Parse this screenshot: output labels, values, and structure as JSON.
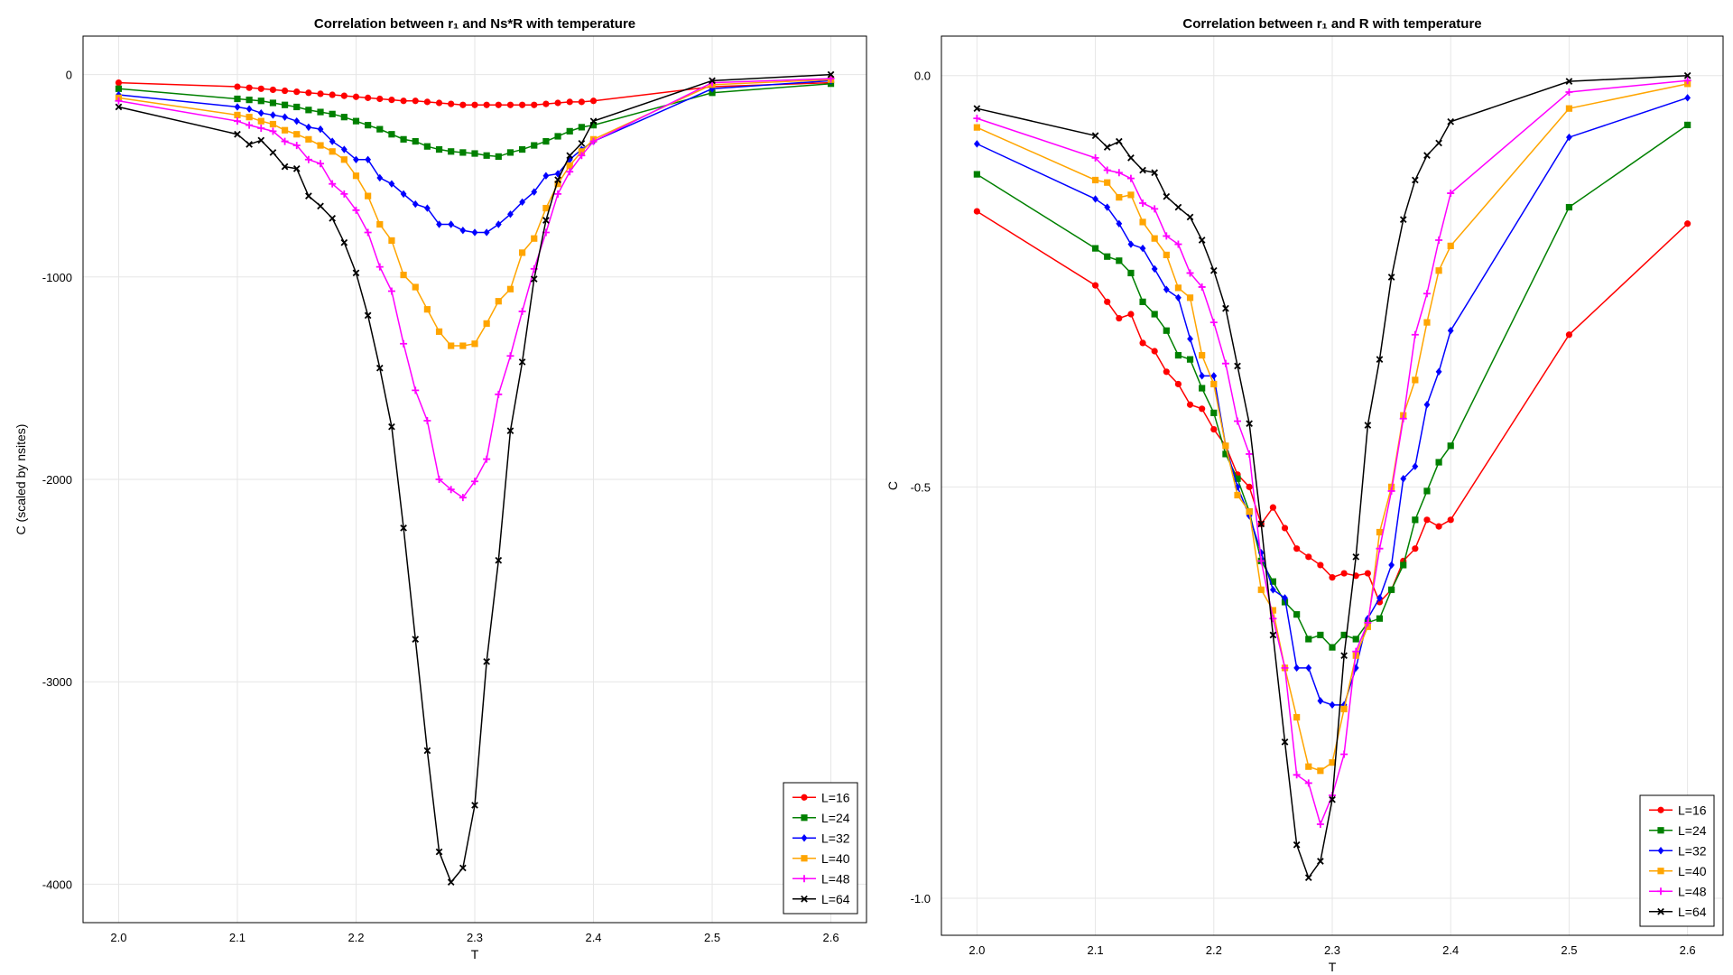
{
  "chart_data": [
    {
      "type": "line",
      "title": "Correlation between r₁ and Ns*R with temperature",
      "xlabel": "T",
      "ylabel": "C (scaled by nsites)",
      "xlim": [
        1.97,
        2.63
      ],
      "ylim": [
        -4190,
        190
      ],
      "xticks": [
        2.0,
        2.1,
        2.2,
        2.3,
        2.4,
        2.5,
        2.6
      ],
      "xtick_labels": [
        "2.0",
        "2.1",
        "2.2",
        "2.3",
        "2.4",
        "2.5",
        "2.6"
      ],
      "yticks": [
        0,
        -1000,
        -2000,
        -3000,
        -4000
      ],
      "ytick_labels": [
        "0",
        "-1000",
        "-2000",
        "-3000",
        "-4000"
      ],
      "grid": true,
      "legend": "bottom-right",
      "series": [
        {
          "name": "L=16",
          "color": "#ff0000",
          "marker": "circle",
          "x": [
            2.0,
            2.1,
            2.11,
            2.12,
            2.13,
            2.14,
            2.15,
            2.16,
            2.17,
            2.18,
            2.19,
            2.2,
            2.21,
            2.22,
            2.23,
            2.24,
            2.25,
            2.26,
            2.27,
            2.28,
            2.29,
            2.3,
            2.31,
            2.32,
            2.33,
            2.34,
            2.35,
            2.36,
            2.37,
            2.38,
            2.39,
            2.4,
            2.5,
            2.6
          ],
          "y": [
            -40,
            -60,
            -65,
            -70,
            -75,
            -80,
            -85,
            -90,
            -95,
            -100,
            -105,
            -110,
            -115,
            -120,
            -125,
            -130,
            -130,
            -135,
            -140,
            -145,
            -150,
            -150,
            -150,
            -150,
            -150,
            -150,
            -150,
            -145,
            -140,
            -135,
            -135,
            -130,
            -60,
            -40
          ]
        },
        {
          "name": "L=24",
          "color": "#008000",
          "marker": "square",
          "x": [
            2.0,
            2.1,
            2.11,
            2.12,
            2.13,
            2.14,
            2.15,
            2.16,
            2.17,
            2.18,
            2.19,
            2.2,
            2.21,
            2.22,
            2.23,
            2.24,
            2.25,
            2.26,
            2.27,
            2.28,
            2.29,
            2.3,
            2.31,
            2.32,
            2.33,
            2.34,
            2.35,
            2.36,
            2.37,
            2.38,
            2.39,
            2.4,
            2.5,
            2.6
          ],
          "y": [
            -70,
            -120,
            -125,
            -130,
            -140,
            -150,
            -160,
            -175,
            -185,
            -195,
            -210,
            -230,
            -250,
            -270,
            -295,
            -320,
            -330,
            -355,
            -370,
            -380,
            -385,
            -390,
            -400,
            -405,
            -385,
            -370,
            -350,
            -330,
            -305,
            -280,
            -260,
            -250,
            -90,
            -45
          ]
        },
        {
          "name": "L=32",
          "color": "#0000ff",
          "marker": "diamond",
          "x": [
            2.0,
            2.1,
            2.11,
            2.12,
            2.13,
            2.14,
            2.15,
            2.16,
            2.17,
            2.18,
            2.19,
            2.2,
            2.21,
            2.22,
            2.23,
            2.24,
            2.25,
            2.26,
            2.27,
            2.28,
            2.29,
            2.3,
            2.31,
            2.32,
            2.33,
            2.34,
            2.35,
            2.36,
            2.37,
            2.38,
            2.39,
            2.4,
            2.5,
            2.6
          ],
          "y": [
            -100,
            -160,
            -170,
            -190,
            -200,
            -210,
            -230,
            -260,
            -270,
            -330,
            -370,
            -420,
            -420,
            -510,
            -540,
            -590,
            -640,
            -660,
            -740,
            -740,
            -770,
            -780,
            -780,
            -740,
            -690,
            -630,
            -580,
            -500,
            -490,
            -420,
            -370,
            -330,
            -70,
            -30
          ]
        },
        {
          "name": "L=40",
          "color": "#ffa500",
          "marker": "square",
          "x": [
            2.0,
            2.1,
            2.11,
            2.12,
            2.13,
            2.14,
            2.15,
            2.16,
            2.17,
            2.18,
            2.19,
            2.2,
            2.21,
            2.22,
            2.23,
            2.24,
            2.25,
            2.26,
            2.27,
            2.28,
            2.29,
            2.3,
            2.31,
            2.32,
            2.33,
            2.34,
            2.35,
            2.36,
            2.37,
            2.38,
            2.39,
            2.4,
            2.5,
            2.6
          ],
          "y": [
            -115,
            -200,
            -210,
            -230,
            -245,
            -275,
            -295,
            -320,
            -350,
            -380,
            -420,
            -500,
            -600,
            -740,
            -820,
            -990,
            -1050,
            -1160,
            -1270,
            -1340,
            -1340,
            -1330,
            -1230,
            -1120,
            -1060,
            -880,
            -810,
            -660,
            -540,
            -450,
            -380,
            -320,
            -50,
            -25
          ]
        },
        {
          "name": "L=48",
          "color": "#ff00ff",
          "marker": "plus",
          "x": [
            2.0,
            2.1,
            2.11,
            2.12,
            2.13,
            2.14,
            2.15,
            2.16,
            2.17,
            2.18,
            2.19,
            2.2,
            2.21,
            2.22,
            2.23,
            2.24,
            2.25,
            2.26,
            2.27,
            2.28,
            2.29,
            2.3,
            2.31,
            2.32,
            2.33,
            2.34,
            2.35,
            2.36,
            2.37,
            2.38,
            2.39,
            2.4,
            2.5,
            2.6
          ],
          "y": [
            -130,
            -230,
            -250,
            -265,
            -280,
            -330,
            -350,
            -420,
            -440,
            -540,
            -590,
            -670,
            -780,
            -950,
            -1070,
            -1330,
            -1560,
            -1710,
            -2000,
            -2050,
            -2090,
            -2010,
            -1900,
            -1580,
            -1390,
            -1170,
            -960,
            -780,
            -590,
            -480,
            -400,
            -330,
            -40,
            -20
          ]
        },
        {
          "name": "L=64",
          "color": "#000000",
          "marker": "cross",
          "x": [
            2.0,
            2.1,
            2.11,
            2.12,
            2.13,
            2.14,
            2.15,
            2.16,
            2.17,
            2.18,
            2.19,
            2.2,
            2.21,
            2.22,
            2.23,
            2.24,
            2.25,
            2.26,
            2.27,
            2.28,
            2.29,
            2.3,
            2.31,
            2.32,
            2.33,
            2.34,
            2.35,
            2.36,
            2.37,
            2.38,
            2.39,
            2.4,
            2.5,
            2.6
          ],
          "y": [
            -160,
            -295,
            -345,
            -325,
            -385,
            -455,
            -465,
            -600,
            -650,
            -710,
            -830,
            -980,
            -1190,
            -1450,
            -1740,
            -2240,
            -2790,
            -3340,
            -3840,
            -3990,
            -3920,
            -3610,
            -2900,
            -2400,
            -1760,
            -1420,
            -1010,
            -720,
            -520,
            -400,
            -340,
            -230,
            -30,
            0
          ]
        }
      ]
    },
    {
      "type": "line",
      "title": "Correlation between r₁ and R with temperature",
      "xlabel": "T",
      "ylabel": "C",
      "xlim": [
        1.97,
        2.63
      ],
      "ylim": [
        -1.045,
        0.048
      ],
      "xticks": [
        2.0,
        2.1,
        2.2,
        2.3,
        2.4,
        2.5,
        2.6
      ],
      "xtick_labels": [
        "2.0",
        "2.1",
        "2.2",
        "2.3",
        "2.4",
        "2.5",
        "2.6"
      ],
      "yticks": [
        0.0,
        -0.5,
        -1.0
      ],
      "ytick_labels": [
        "0.0",
        "-0.5",
        "-1.0"
      ],
      "grid": true,
      "legend": "bottom-right",
      "series": [
        {
          "name": "L=16",
          "color": "#ff0000",
          "marker": "circle",
          "x": [
            2.0,
            2.1,
            2.11,
            2.12,
            2.13,
            2.14,
            2.15,
            2.16,
            2.17,
            2.18,
            2.19,
            2.2,
            2.21,
            2.22,
            2.23,
            2.24,
            2.25,
            2.26,
            2.27,
            2.28,
            2.29,
            2.3,
            2.31,
            2.32,
            2.33,
            2.34,
            2.35,
            2.36,
            2.37,
            2.38,
            2.39,
            2.4,
            2.5,
            2.6
          ],
          "y": [
            -0.165,
            -0.255,
            -0.275,
            -0.295,
            -0.29,
            -0.325,
            -0.335,
            -0.36,
            -0.375,
            -0.4,
            -0.405,
            -0.43,
            -0.45,
            -0.485,
            -0.5,
            -0.545,
            -0.525,
            -0.55,
            -0.575,
            -0.585,
            -0.595,
            -0.61,
            -0.605,
            -0.608,
            -0.605,
            -0.64,
            -0.625,
            -0.59,
            -0.575,
            -0.54,
            -0.548,
            -0.54,
            -0.315,
            -0.18
          ]
        },
        {
          "name": "L=24",
          "color": "#008000",
          "marker": "square",
          "x": [
            2.0,
            2.1,
            2.11,
            2.12,
            2.13,
            2.14,
            2.15,
            2.16,
            2.17,
            2.18,
            2.19,
            2.2,
            2.21,
            2.22,
            2.23,
            2.24,
            2.25,
            2.26,
            2.27,
            2.28,
            2.29,
            2.3,
            2.31,
            2.32,
            2.33,
            2.34,
            2.35,
            2.36,
            2.37,
            2.38,
            2.39,
            2.4,
            2.5,
            2.6
          ],
          "y": [
            -0.12,
            -0.21,
            -0.22,
            -0.225,
            -0.24,
            -0.275,
            -0.29,
            -0.31,
            -0.34,
            -0.345,
            -0.38,
            -0.41,
            -0.46,
            -0.49,
            -0.53,
            -0.59,
            -0.615,
            -0.64,
            -0.655,
            -0.685,
            -0.68,
            -0.695,
            -0.68,
            -0.685,
            -0.665,
            -0.66,
            -0.625,
            -0.595,
            -0.54,
            -0.505,
            -0.47,
            -0.45,
            -0.16,
            -0.06
          ]
        },
        {
          "name": "L=32",
          "color": "#0000ff",
          "marker": "diamond",
          "x": [
            2.0,
            2.1,
            2.11,
            2.12,
            2.13,
            2.14,
            2.15,
            2.16,
            2.17,
            2.18,
            2.19,
            2.2,
            2.21,
            2.22,
            2.23,
            2.24,
            2.25,
            2.26,
            2.27,
            2.28,
            2.29,
            2.3,
            2.31,
            2.32,
            2.33,
            2.34,
            2.35,
            2.36,
            2.37,
            2.38,
            2.39,
            2.4,
            2.5,
            2.6
          ],
          "y": [
            -0.083,
            -0.15,
            -0.16,
            -0.18,
            -0.205,
            -0.21,
            -0.235,
            -0.26,
            -0.27,
            -0.32,
            -0.365,
            -0.365,
            -0.45,
            -0.5,
            -0.535,
            -0.58,
            -0.625,
            -0.635,
            -0.72,
            -0.72,
            -0.76,
            -0.765,
            -0.765,
            -0.72,
            -0.66,
            -0.635,
            -0.595,
            -0.49,
            -0.475,
            -0.4,
            -0.36,
            -0.31,
            -0.075,
            -0.027
          ]
        },
        {
          "name": "L=40",
          "color": "#ffa500",
          "marker": "square",
          "x": [
            2.0,
            2.1,
            2.11,
            2.12,
            2.13,
            2.14,
            2.15,
            2.16,
            2.17,
            2.18,
            2.19,
            2.2,
            2.21,
            2.22,
            2.23,
            2.24,
            2.25,
            2.26,
            2.27,
            2.28,
            2.29,
            2.3,
            2.31,
            2.32,
            2.33,
            2.34,
            2.35,
            2.36,
            2.37,
            2.38,
            2.39,
            2.4,
            2.5,
            2.6
          ],
          "y": [
            -0.063,
            -0.127,
            -0.13,
            -0.148,
            -0.145,
            -0.178,
            -0.198,
            -0.218,
            -0.258,
            -0.27,
            -0.34,
            -0.375,
            -0.45,
            -0.51,
            -0.53,
            -0.625,
            -0.65,
            -0.72,
            -0.78,
            -0.84,
            -0.845,
            -0.835,
            -0.77,
            -0.705,
            -0.67,
            -0.555,
            -0.5,
            -0.413,
            -0.37,
            -0.3,
            -0.237,
            -0.207,
            -0.04,
            -0.01
          ]
        },
        {
          "name": "L=48",
          "color": "#ff00ff",
          "marker": "plus",
          "x": [
            2.0,
            2.1,
            2.11,
            2.12,
            2.13,
            2.14,
            2.15,
            2.16,
            2.17,
            2.18,
            2.19,
            2.2,
            2.21,
            2.22,
            2.23,
            2.24,
            2.25,
            2.26,
            2.27,
            2.28,
            2.29,
            2.3,
            2.31,
            2.32,
            2.33,
            2.34,
            2.35,
            2.36,
            2.37,
            2.38,
            2.39,
            2.4,
            2.5,
            2.6
          ],
          "y": [
            -0.052,
            -0.1,
            -0.115,
            -0.118,
            -0.125,
            -0.155,
            -0.162,
            -0.195,
            -0.205,
            -0.24,
            -0.257,
            -0.3,
            -0.35,
            -0.42,
            -0.46,
            -0.59,
            -0.66,
            -0.72,
            -0.85,
            -0.86,
            -0.91,
            -0.875,
            -0.825,
            -0.7,
            -0.665,
            -0.575,
            -0.505,
            -0.417,
            -0.315,
            -0.265,
            -0.2,
            -0.143,
            -0.02,
            -0.006
          ]
        },
        {
          "name": "L=64",
          "color": "#000000",
          "marker": "cross",
          "x": [
            2.0,
            2.1,
            2.11,
            2.12,
            2.13,
            2.14,
            2.15,
            2.16,
            2.17,
            2.18,
            2.19,
            2.2,
            2.21,
            2.22,
            2.23,
            2.24,
            2.25,
            2.26,
            2.27,
            2.28,
            2.29,
            2.3,
            2.31,
            2.32,
            2.33,
            2.34,
            2.35,
            2.36,
            2.37,
            2.38,
            2.39,
            2.4,
            2.5,
            2.6
          ],
          "y": [
            -0.04,
            -0.073,
            -0.087,
            -0.08,
            -0.1,
            -0.115,
            -0.118,
            -0.147,
            -0.16,
            -0.172,
            -0.2,
            -0.237,
            -0.283,
            -0.353,
            -0.423,
            -0.545,
            -0.68,
            -0.81,
            -0.935,
            -0.975,
            -0.955,
            -0.88,
            -0.705,
            -0.585,
            -0.425,
            -0.345,
            -0.245,
            -0.175,
            -0.127,
            -0.097,
            -0.082,
            -0.056,
            -0.007,
            0.0
          ]
        }
      ]
    }
  ]
}
